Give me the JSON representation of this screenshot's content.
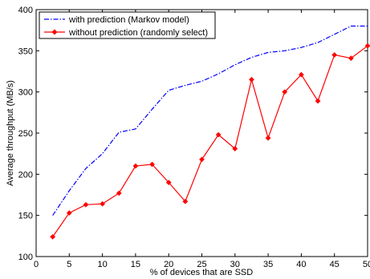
{
  "chart_data": {
    "type": "line",
    "xlabel": "% of devices that are SSD",
    "ylabel": "Average throughput (MB/s)",
    "xlim": [
      0,
      50
    ],
    "ylim": [
      100,
      400
    ],
    "xticks": [
      0,
      5,
      10,
      15,
      20,
      25,
      30,
      35,
      40,
      45,
      50
    ],
    "yticks": [
      100,
      150,
      200,
      250,
      300,
      350,
      400
    ],
    "grid": false,
    "legend_position": "top-left",
    "series": [
      {
        "name": "with prediction (Markov model)",
        "color": "#0000ff",
        "line_style": "dash-dot",
        "marker": "none",
        "x": [
          2.5,
          5,
          7.5,
          10,
          12.5,
          15,
          17.5,
          20,
          22.5,
          25,
          27.5,
          30,
          32.5,
          35,
          37.5,
          40,
          42.5,
          45,
          47.5,
          50
        ],
        "y": [
          150,
          180,
          207,
          225,
          251,
          255,
          279,
          302,
          308,
          313,
          322,
          333,
          342,
          348,
          350,
          354,
          360,
          370,
          380,
          380
        ]
      },
      {
        "name": "without prediction (randomly select)",
        "color": "#ff0000",
        "line_style": "solid",
        "marker": "diamond",
        "x": [
          2.5,
          5,
          7.5,
          10,
          12.5,
          15,
          17.5,
          20,
          22.5,
          25,
          27.5,
          30,
          32.5,
          35,
          37.5,
          40,
          42.5,
          45,
          47.5,
          50
        ],
        "y": [
          124,
          153,
          163,
          164,
          177,
          210,
          212,
          190,
          167,
          218,
          248,
          231,
          315,
          244,
          300,
          321,
          289,
          345,
          341,
          356
        ]
      }
    ]
  }
}
